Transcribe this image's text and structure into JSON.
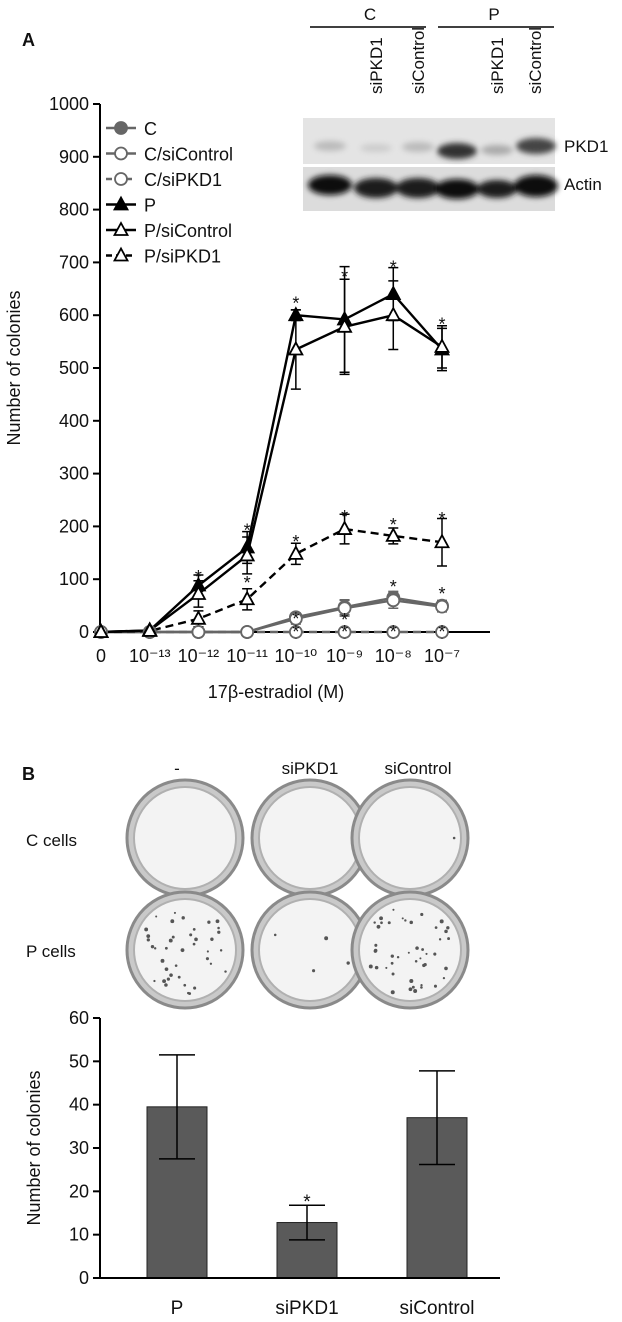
{
  "panel_labels": [
    "A",
    "B"
  ],
  "blot": {
    "groups": [
      "C",
      "P"
    ],
    "lanes": [
      "siPKD1",
      "siControl",
      "siPKD1",
      "siControl"
    ],
    "rows": [
      "PKD1",
      "Actin"
    ]
  },
  "dishes": {
    "columns": [
      "-",
      "siPKD1",
      "siControl"
    ],
    "rows": [
      "C cells",
      "P cells"
    ]
  },
  "chart_data": [
    {
      "type": "line",
      "ylabel": "Number of colonies",
      "xlabel": "17β-estradiol (M)",
      "categories": [
        "0",
        "10⁻¹³",
        "10⁻¹²",
        "10⁻¹¹",
        "10⁻¹⁰",
        "10⁻⁹",
        "10⁻⁸",
        "10⁻⁷"
      ],
      "ylim": [
        0,
        1000
      ],
      "yticks": [
        0,
        100,
        200,
        300,
        400,
        500,
        600,
        700,
        800,
        900,
        1000
      ],
      "legend": "upper left",
      "series": [
        {
          "name": "C",
          "color": "#666666",
          "marker": "circle",
          "filled": true,
          "dashed": false,
          "values": [
            0,
            0,
            0,
            0,
            28,
            47,
            65,
            50
          ],
          "errors": [
            0,
            0,
            0,
            0,
            8,
            14,
            12,
            10
          ]
        },
        {
          "name": "C/siControl",
          "color": "#666666",
          "marker": "circle",
          "filled": false,
          "dashed": false,
          "values": [
            0,
            0,
            0,
            0,
            25,
            45,
            60,
            48
          ],
          "errors": [
            0,
            0,
            0,
            0,
            10,
            15,
            15,
            10
          ]
        },
        {
          "name": "C/siPKD1",
          "color": "#666666",
          "marker": "circle",
          "filled": false,
          "dashed": true,
          "values": [
            0,
            0,
            0,
            0,
            0,
            0,
            0,
            0
          ],
          "errors": [
            0,
            0,
            0,
            0,
            0,
            0,
            0,
            0
          ]
        },
        {
          "name": "P",
          "color": "#000000",
          "marker": "triangle",
          "filled": true,
          "dashed": false,
          "values": [
            0,
            3,
            88,
            160,
            600,
            592,
            640,
            535
          ],
          "errors": [
            0,
            2,
            20,
            30,
            10,
            100,
            50,
            40
          ]
        },
        {
          "name": "P/siControl",
          "color": "#000000",
          "marker": "triangle",
          "filled": false,
          "dashed": false,
          "values": [
            0,
            3,
            72,
            145,
            535,
            578,
            600,
            540
          ],
          "errors": [
            0,
            2,
            25,
            35,
            75,
            90,
            65,
            40
          ]
        },
        {
          "name": "P/siPKD1",
          "color": "#000000",
          "marker": "triangle",
          "filled": false,
          "dashed": true,
          "values": [
            0,
            2,
            25,
            62,
            148,
            195,
            182,
            170
          ],
          "errors": [
            0,
            1,
            15,
            20,
            20,
            28,
            15,
            45
          ]
        }
      ],
      "annotations": [
        {
          "x": "10⁻¹²",
          "y": 112,
          "text": "*"
        },
        {
          "x": "10⁻¹¹",
          "y": 200,
          "text": "*"
        },
        {
          "x": "10⁻¹¹",
          "y": 100,
          "text": "*"
        },
        {
          "x": "10⁻¹⁰",
          "y": 630,
          "text": "*"
        },
        {
          "x": "10⁻¹⁰",
          "y": 178,
          "text": "*"
        },
        {
          "x": "10⁻¹⁰",
          "y": 32,
          "text": "*"
        },
        {
          "x": "10⁻¹⁰",
          "y": 8,
          "text": "*"
        },
        {
          "x": "10⁻⁹",
          "y": 680,
          "text": "*"
        },
        {
          "x": "10⁻⁹",
          "y": 225,
          "text": "*"
        },
        {
          "x": "10⁻⁹",
          "y": 30,
          "text": "*"
        },
        {
          "x": "10⁻⁹",
          "y": 8,
          "text": "*"
        },
        {
          "x": "10⁻⁸",
          "y": 698,
          "text": "*"
        },
        {
          "x": "10⁻⁸",
          "y": 210,
          "text": "*"
        },
        {
          "x": "10⁻⁸",
          "y": 93,
          "text": "*"
        },
        {
          "x": "10⁻⁸",
          "y": 8,
          "text": "*"
        },
        {
          "x": "10⁻⁷",
          "y": 590,
          "text": "*"
        },
        {
          "x": "10⁻⁷",
          "y": 222,
          "text": "*"
        },
        {
          "x": "10⁻⁷",
          "y": 80,
          "text": "*"
        },
        {
          "x": "10⁻⁷",
          "y": 8,
          "text": "*"
        }
      ]
    },
    {
      "type": "bar",
      "ylabel": "Number of colonies",
      "categories": [
        "P",
        "siPKD1",
        "siControl"
      ],
      "values": [
        39.5,
        12.8,
        37
      ],
      "errors": [
        12,
        4,
        10.8
      ],
      "color": "#5a5a5a",
      "ylim": [
        0,
        60
      ],
      "yticks": [
        0,
        10,
        20,
        30,
        40,
        50,
        60
      ],
      "annotations": [
        {
          "x": "siPKD1",
          "y": 18.5,
          "text": "*"
        }
      ]
    }
  ]
}
